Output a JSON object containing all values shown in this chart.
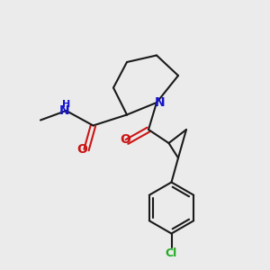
{
  "bg_color": "#ebebeb",
  "bond_color": "#1a1a1a",
  "N_color": "#1414cc",
  "O_color": "#cc1414",
  "Cl_color": "#22aa22",
  "line_width": 1.5,
  "font_size": 9,
  "xlim": [
    0,
    10
  ],
  "ylim": [
    0,
    10
  ]
}
